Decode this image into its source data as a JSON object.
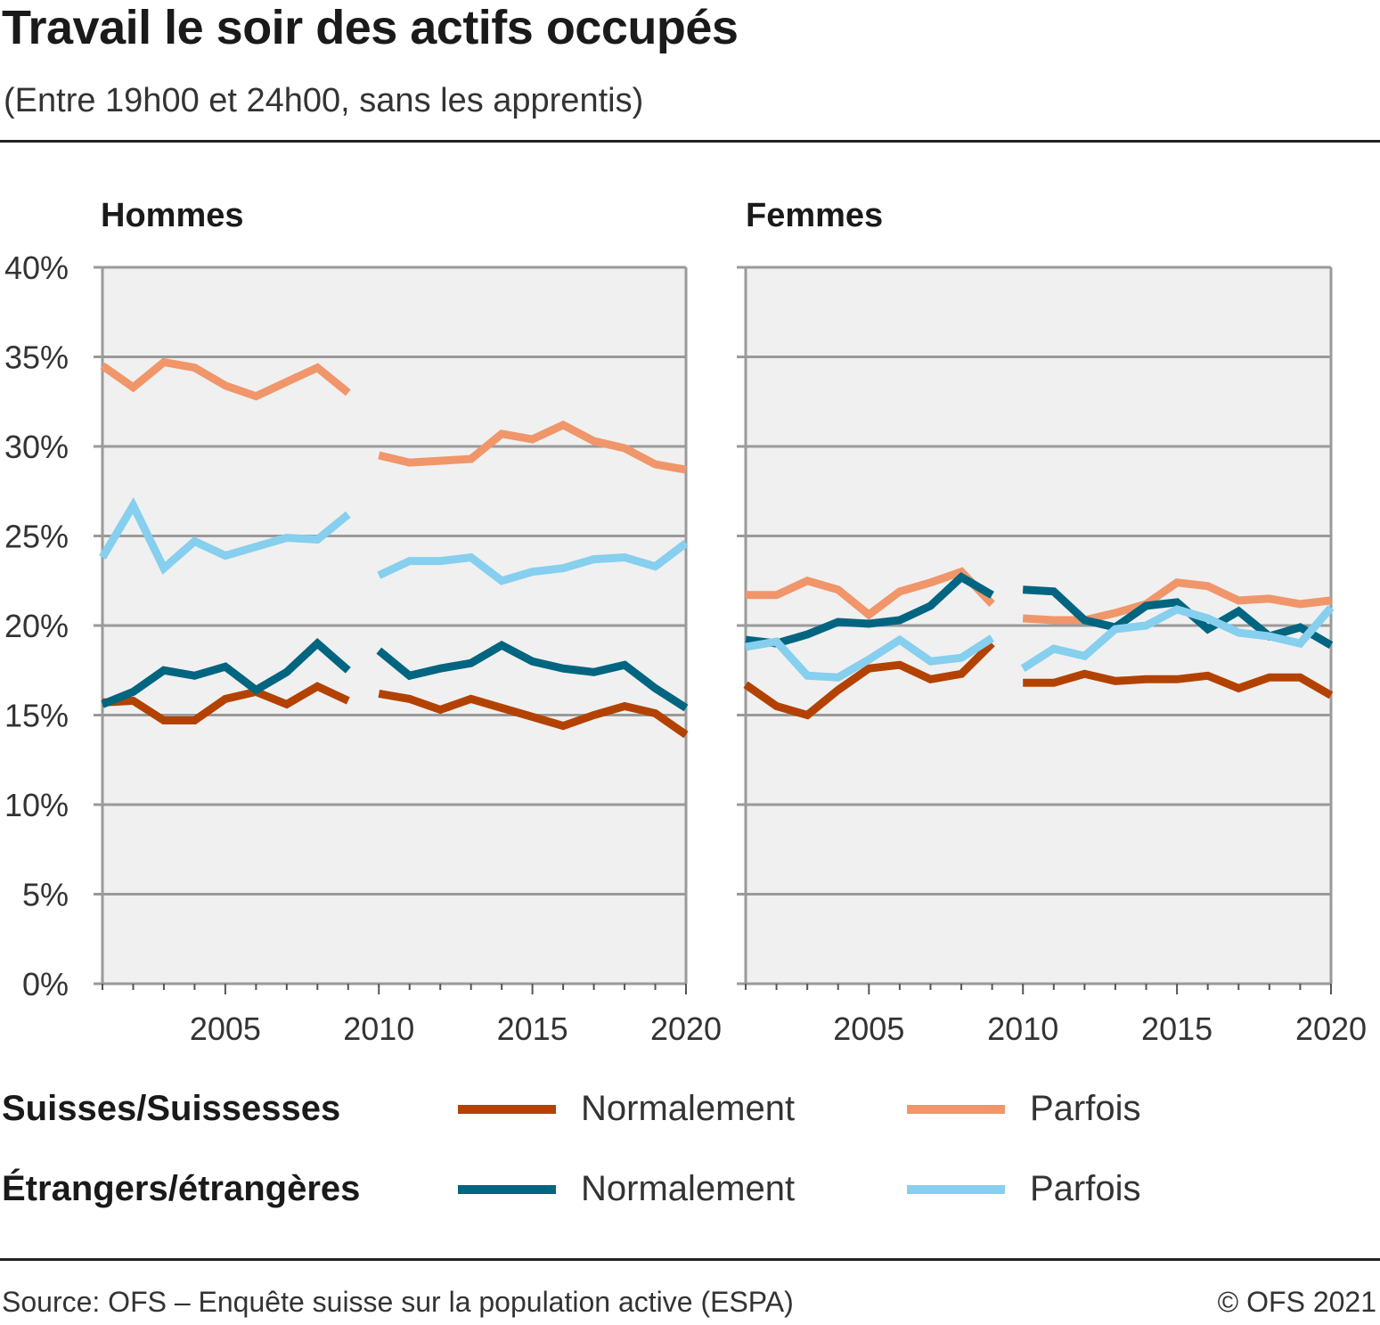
{
  "header": {
    "title": "Travail le soir des actifs occupés",
    "subtitle": "(Entre 19h00 et 24h00, sans les apprentis)"
  },
  "footer": {
    "source": "Source: OFS – Enquête suisse sur la population active (ESPA)",
    "copyright": "© OFS 2021"
  },
  "legend": {
    "groups": [
      {
        "label": "Suisses/Suissesses",
        "items": [
          {
            "label": "Normalement",
            "color": "#b34200"
          },
          {
            "label": "Parfois",
            "color": "#f0966a"
          }
        ]
      },
      {
        "label": "Étrangers/étrangères",
        "items": [
          {
            "label": "Normalement",
            "color": "#006580"
          },
          {
            "label": "Parfois",
            "color": "#86cfee"
          }
        ]
      }
    ]
  },
  "chart_data": [
    {
      "type": "line",
      "title": "Hommes",
      "xticks": [
        "2005",
        "2010",
        "2015",
        "2020"
      ],
      "xlim": [
        2001,
        2020
      ],
      "ylim": [
        0,
        40
      ],
      "yticks": [
        "0%",
        "5%",
        "10%",
        "15%",
        "20%",
        "25%",
        "30%",
        "35%",
        "40%"
      ],
      "grid": true,
      "series": [
        {
          "name": "Suisses/Suissesses – Normalement",
          "color": "#b34200",
          "segments": [
            {
              "x": [
                2001,
                2002,
                2003,
                2004,
                2005,
                2006,
                2007,
                2008,
                2009
              ],
              "y": [
                15.7,
                15.8,
                14.7,
                14.7,
                15.9,
                16.3,
                15.6,
                16.6,
                15.8
              ]
            },
            {
              "x": [
                2010,
                2011,
                2012,
                2013,
                2014,
                2015,
                2016,
                2017,
                2018,
                2019,
                2020
              ],
              "y": [
                16.2,
                15.9,
                15.3,
                15.9,
                15.4,
                14.9,
                14.4,
                15.0,
                15.5,
                15.1,
                13.9
              ]
            }
          ]
        },
        {
          "name": "Suisses/Suissesses – Parfois",
          "color": "#f0966a",
          "segments": [
            {
              "x": [
                2001,
                2002,
                2003,
                2004,
                2005,
                2006,
                2007,
                2008,
                2009
              ],
              "y": [
                34.5,
                33.3,
                34.7,
                34.4,
                33.4,
                32.8,
                33.6,
                34.4,
                33.0
              ]
            },
            {
              "x": [
                2010,
                2011,
                2012,
                2013,
                2014,
                2015,
                2016,
                2017,
                2018,
                2019,
                2020
              ],
              "y": [
                29.5,
                29.1,
                29.2,
                29.3,
                30.7,
                30.4,
                31.2,
                30.3,
                29.9,
                29.0,
                28.7
              ]
            }
          ]
        },
        {
          "name": "Étrangers/étrangères – Normalement",
          "color": "#006580",
          "segments": [
            {
              "x": [
                2001,
                2002,
                2003,
                2004,
                2005,
                2006,
                2007,
                2008,
                2009
              ],
              "y": [
                15.6,
                16.3,
                17.5,
                17.2,
                17.7,
                16.4,
                17.4,
                19.0,
                17.5
              ]
            },
            {
              "x": [
                2010,
                2011,
                2012,
                2013,
                2014,
                2015,
                2016,
                2017,
                2018,
                2019,
                2020
              ],
              "y": [
                18.6,
                17.2,
                17.6,
                17.9,
                18.9,
                18.0,
                17.6,
                17.4,
                17.8,
                16.5,
                15.4
              ]
            }
          ]
        },
        {
          "name": "Étrangers/étrangères – Parfois",
          "color": "#86cfee",
          "segments": [
            {
              "x": [
                2001,
                2002,
                2003,
                2004,
                2005,
                2006,
                2007,
                2008,
                2009
              ],
              "y": [
                23.8,
                26.7,
                23.2,
                24.7,
                23.9,
                24.4,
                24.9,
                24.8,
                26.2
              ]
            },
            {
              "x": [
                2010,
                2011,
                2012,
                2013,
                2014,
                2015,
                2016,
                2017,
                2018,
                2019,
                2020
              ],
              "y": [
                22.8,
                23.6,
                23.6,
                23.8,
                22.5,
                23.0,
                23.2,
                23.7,
                23.8,
                23.3,
                24.6
              ]
            }
          ]
        }
      ]
    },
    {
      "type": "line",
      "title": "Femmes",
      "xticks": [
        "2005",
        "2010",
        "2015",
        "2020"
      ],
      "xlim": [
        2001,
        2020
      ],
      "ylim": [
        0,
        40
      ],
      "grid": true,
      "series": [
        {
          "name": "Suisses/Suissesses – Normalement",
          "color": "#b34200",
          "segments": [
            {
              "x": [
                2001,
                2002,
                2003,
                2004,
                2005,
                2006,
                2007,
                2008,
                2009
              ],
              "y": [
                16.7,
                15.5,
                15.0,
                16.4,
                17.6,
                17.8,
                17.0,
                17.3,
                19.0
              ]
            },
            {
              "x": [
                2010,
                2011,
                2012,
                2013,
                2014,
                2015,
                2016,
                2017,
                2018,
                2019,
                2020
              ],
              "y": [
                16.8,
                16.8,
                17.3,
                16.9,
                17.0,
                17.0,
                17.2,
                16.5,
                17.1,
                17.1,
                16.1
              ]
            }
          ]
        },
        {
          "name": "Suisses/Suissesses – Parfois",
          "color": "#f0966a",
          "segments": [
            {
              "x": [
                2001,
                2002,
                2003,
                2004,
                2005,
                2006,
                2007,
                2008,
                2009
              ],
              "y": [
                21.7,
                21.7,
                22.5,
                22.0,
                20.6,
                21.9,
                22.4,
                23.0,
                21.2
              ]
            },
            {
              "x": [
                2010,
                2011,
                2012,
                2013,
                2014,
                2015,
                2016,
                2017,
                2018,
                2019,
                2020
              ],
              "y": [
                20.4,
                20.3,
                20.3,
                20.7,
                21.2,
                22.4,
                22.2,
                21.4,
                21.5,
                21.2,
                21.4
              ]
            }
          ]
        },
        {
          "name": "Étrangers/étrangères – Normalement",
          "color": "#006580",
          "segments": [
            {
              "x": [
                2001,
                2002,
                2003,
                2004,
                2005,
                2006,
                2007,
                2008,
                2009
              ],
              "y": [
                19.2,
                19.0,
                19.5,
                20.2,
                20.1,
                20.3,
                21.1,
                22.7,
                21.7
              ]
            },
            {
              "x": [
                2010,
                2011,
                2012,
                2013,
                2014,
                2015,
                2016,
                2017,
                2018,
                2019,
                2020
              ],
              "y": [
                22.0,
                21.9,
                20.3,
                19.9,
                21.1,
                21.3,
                19.8,
                20.8,
                19.4,
                19.9,
                18.9
              ]
            }
          ]
        },
        {
          "name": "Étrangers/étrangères – Parfois",
          "color": "#86cfee",
          "segments": [
            {
              "x": [
                2001,
                2002,
                2003,
                2004,
                2005,
                2006,
                2007,
                2008,
                2009
              ],
              "y": [
                18.8,
                19.1,
                17.2,
                17.1,
                18.1,
                19.2,
                18.0,
                18.2,
                19.3
              ]
            },
            {
              "x": [
                2010,
                2011,
                2012,
                2013,
                2014,
                2015,
                2016,
                2017,
                2018,
                2019,
                2020
              ],
              "y": [
                17.6,
                18.7,
                18.3,
                19.8,
                20.0,
                20.9,
                20.4,
                19.6,
                19.4,
                19.0,
                21.0
              ]
            }
          ]
        }
      ]
    }
  ]
}
